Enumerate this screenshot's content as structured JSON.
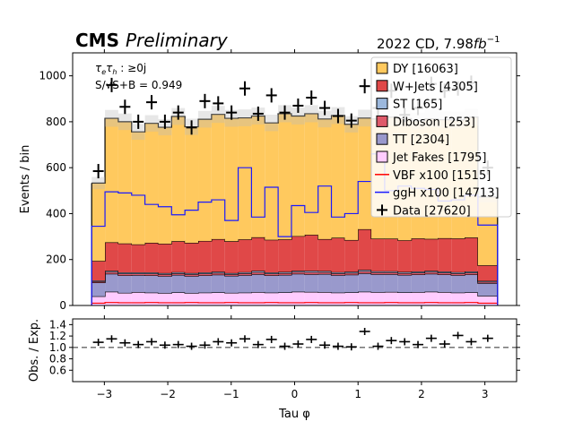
{
  "header": {
    "cms": "CMS",
    "preliminary": "Preliminary",
    "lumi_prefix": "2022 CD, 7.98",
    "lumi_unit": "fb",
    "lumi_exp": "−1"
  },
  "annotations": {
    "channel_line": "τ",
    "channel_sub1": "e",
    "channel_mid": "τ",
    "channel_sub2": "h",
    "channel_rest": " : ≥0j",
    "sig_line": "S/√S+B = 0.949"
  },
  "chart_data": [
    {
      "type": "bar",
      "stacked": true,
      "xlabel": "Tau φ",
      "ylabel": "Events / bin",
      "xlim": [
        -3.5,
        3.5
      ],
      "ylim": [
        0,
        1100
      ],
      "yticks": [
        0,
        200,
        400,
        600,
        800,
        1000
      ],
      "xticks": [
        -3,
        -2,
        -1,
        0,
        1,
        2,
        3
      ],
      "xtick_labels": [
        "−3",
        "−2",
        "−1",
        "0",
        "1",
        "2",
        "3"
      ],
      "bin_edges": [
        -3.2,
        -2.99,
        -2.78,
        -2.57,
        -2.36,
        -2.15,
        -1.94,
        -1.73,
        -1.52,
        -1.31,
        -1.1,
        -0.89,
        -0.68,
        -0.47,
        -0.26,
        -0.05,
        0.16,
        0.37,
        0.58,
        0.79,
        1.0,
        1.21,
        1.42,
        1.63,
        1.84,
        2.05,
        2.26,
        2.47,
        2.68,
        2.89,
        3.2
      ],
      "stack_series": [
        {
          "name": "Jet Fakes [1795]",
          "color": "#ffccff",
          "values": [
            40,
            60,
            55,
            58,
            56,
            54,
            57,
            54,
            56,
            57,
            55,
            56,
            58,
            56,
            57,
            60,
            59,
            58,
            56,
            57,
            60,
            58,
            59,
            57,
            58,
            60,
            58,
            56,
            57,
            42
          ]
        },
        {
          "name": "TT [2304]",
          "color": "#9999cc",
          "values": [
            60,
            78,
            76,
            74,
            75,
            74,
            76,
            74,
            75,
            77,
            74,
            76,
            78,
            75,
            76,
            78,
            77,
            79,
            76,
            77,
            80,
            78,
            77,
            76,
            77,
            78,
            77,
            76,
            78,
            55
          ]
        },
        {
          "name": "Diboson [253]",
          "color": "#de5a6a",
          "values": [
            5,
            8,
            8,
            7,
            8,
            8,
            7,
            8,
            8,
            8,
            7,
            8,
            9,
            8,
            8,
            8,
            9,
            8,
            8,
            8,
            9,
            8,
            8,
            8,
            8,
            8,
            8,
            8,
            8,
            6
          ]
        },
        {
          "name": "ST [165]",
          "color": "#9cb8dd",
          "values": [
            4,
            5,
            5,
            5,
            5,
            5,
            5,
            5,
            5,
            5,
            5,
            5,
            6,
            5,
            5,
            5,
            6,
            5,
            5,
            5,
            6,
            5,
            5,
            5,
            5,
            5,
            5,
            5,
            5,
            4
          ]
        },
        {
          "name": "W+Jets [4305]",
          "color": "#e04848",
          "values": [
            85,
            124,
            126,
            122,
            129,
            128,
            135,
            132,
            137,
            142,
            139,
            143,
            146,
            142,
            142,
            151,
            157,
            139,
            150,
            138,
            177,
            142,
            142,
            138,
            144,
            139,
            145,
            147,
            148,
            68
          ]
        },
        {
          "name": "DY [16063]",
          "color": "#ffc95e",
          "values": [
            339,
            540,
            530,
            490,
            520,
            507,
            543,
            505,
            530,
            543,
            535,
            529,
            528,
            509,
            547,
            523,
            527,
            523,
            532,
            504,
            484,
            521,
            529,
            530,
            512,
            523,
            516,
            516,
            524,
            298
          ]
        }
      ],
      "signal_series": [
        {
          "name": "VBF x100 [1515]",
          "color": "#ff0000",
          "values": [
            10,
            13,
            12,
            12,
            13,
            12,
            12,
            13,
            12,
            12,
            13,
            12,
            12,
            13,
            12,
            12,
            13,
            12,
            12,
            13,
            12,
            12,
            13,
            12,
            12,
            13,
            12,
            12,
            13,
            10
          ]
        },
        {
          "name": "ggH x100 [14713]",
          "color": "#1a1aff",
          "values": [
            345,
            495,
            490,
            480,
            440,
            430,
            395,
            415,
            450,
            460,
            370,
            600,
            385,
            515,
            300,
            435,
            405,
            520,
            385,
            400,
            540,
            660,
            500,
            520,
            510,
            505,
            455,
            460,
            480,
            350
          ]
        }
      ],
      "data_series": {
        "name": "Data [27620]",
        "x": [
          -3.095,
          -2.885,
          -2.675,
          -2.465,
          -2.255,
          -2.045,
          -1.835,
          -1.625,
          -1.415,
          -1.205,
          -0.995,
          -0.785,
          -0.575,
          -0.365,
          -0.155,
          0.055,
          0.265,
          0.475,
          0.685,
          0.895,
          1.105,
          1.315,
          1.525,
          1.735,
          1.945,
          2.155,
          2.365,
          2.575,
          2.785,
          3.045
        ],
        "y": [
          585,
          960,
          865,
          800,
          885,
          800,
          840,
          775,
          890,
          880,
          840,
          945,
          835,
          915,
          840,
          870,
          905,
          860,
          825,
          805,
          955,
          860,
          935,
          830,
          860,
          965,
          935,
          945,
          970,
          600
        ]
      },
      "legend_placement": "top-right",
      "mc_uncertainty_band": true
    },
    {
      "type": "scatter",
      "xlabel": "Tau φ",
      "ylabel": "Obs. / Exp.",
      "ylim": [
        0.4,
        1.5
      ],
      "yticks": [
        0.6,
        0.8,
        1.0,
        1.2,
        1.4
      ],
      "ytick_labels": [
        "0.6",
        "0.8",
        "1.0",
        "1.2",
        "1.4"
      ],
      "reference_line": 1.0,
      "x": [
        -3.095,
        -2.885,
        -2.675,
        -2.465,
        -2.255,
        -2.045,
        -1.835,
        -1.625,
        -1.415,
        -1.205,
        -0.995,
        -0.785,
        -0.575,
        -0.365,
        -0.155,
        0.055,
        0.265,
        0.475,
        0.685,
        0.895,
        1.105,
        1.315,
        1.525,
        1.735,
        1.945,
        2.155,
        2.365,
        2.575,
        2.785,
        3.045
      ],
      "y": [
        1.09,
        1.15,
        1.08,
        1.05,
        1.1,
        1.04,
        1.05,
        1.02,
        1.04,
        1.1,
        1.08,
        1.15,
        1.05,
        1.14,
        1.02,
        1.06,
        1.14,
        1.04,
        1.02,
        1.01,
        1.28,
        1.02,
        1.12,
        1.1,
        1.05,
        1.16,
        1.06,
        1.21,
        1.1,
        1.16
      ]
    }
  ]
}
